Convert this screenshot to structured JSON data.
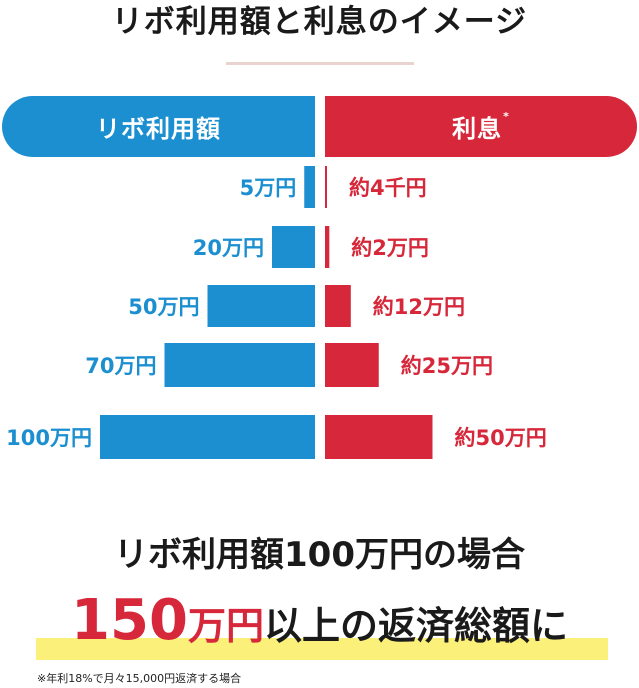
{
  "title": "リボ利用額と利息のイメージ",
  "header": {
    "left_label": "リボ利用額",
    "right_label": "利息",
    "right_mark": "*"
  },
  "chart_data": {
    "type": "bar",
    "orientation": "horizontal-butterfly",
    "categories": [
      "5万円",
      "20万円",
      "50万円",
      "70万円",
      "100万円"
    ],
    "series": [
      {
        "name": "リボ利用額",
        "values": [
          5,
          20,
          50,
          70,
          100
        ],
        "labels": [
          "5万円",
          "20万円",
          "50万円",
          "70万円",
          "100万円"
        ],
        "color": "#1c8fd0"
      },
      {
        "name": "利息",
        "values": [
          0.4,
          2,
          12,
          25,
          50
        ],
        "labels": [
          "約4千円",
          "約2万円",
          "約12万円",
          "約25万円",
          "約50万円"
        ],
        "color": "#d6283a"
      }
    ]
  },
  "summary": {
    "headline": "リボ利用額100万円の場合",
    "big_number": "150",
    "big_unit": "万円",
    "big_rest": "以上の返済総額に"
  },
  "footnote": "※年利18%で月々15,000円返済する場合",
  "colors": {
    "blue": "#1c8fd0",
    "red": "#d6283a",
    "highlight": "#fbf07a",
    "rule": "#e9d3cf"
  }
}
